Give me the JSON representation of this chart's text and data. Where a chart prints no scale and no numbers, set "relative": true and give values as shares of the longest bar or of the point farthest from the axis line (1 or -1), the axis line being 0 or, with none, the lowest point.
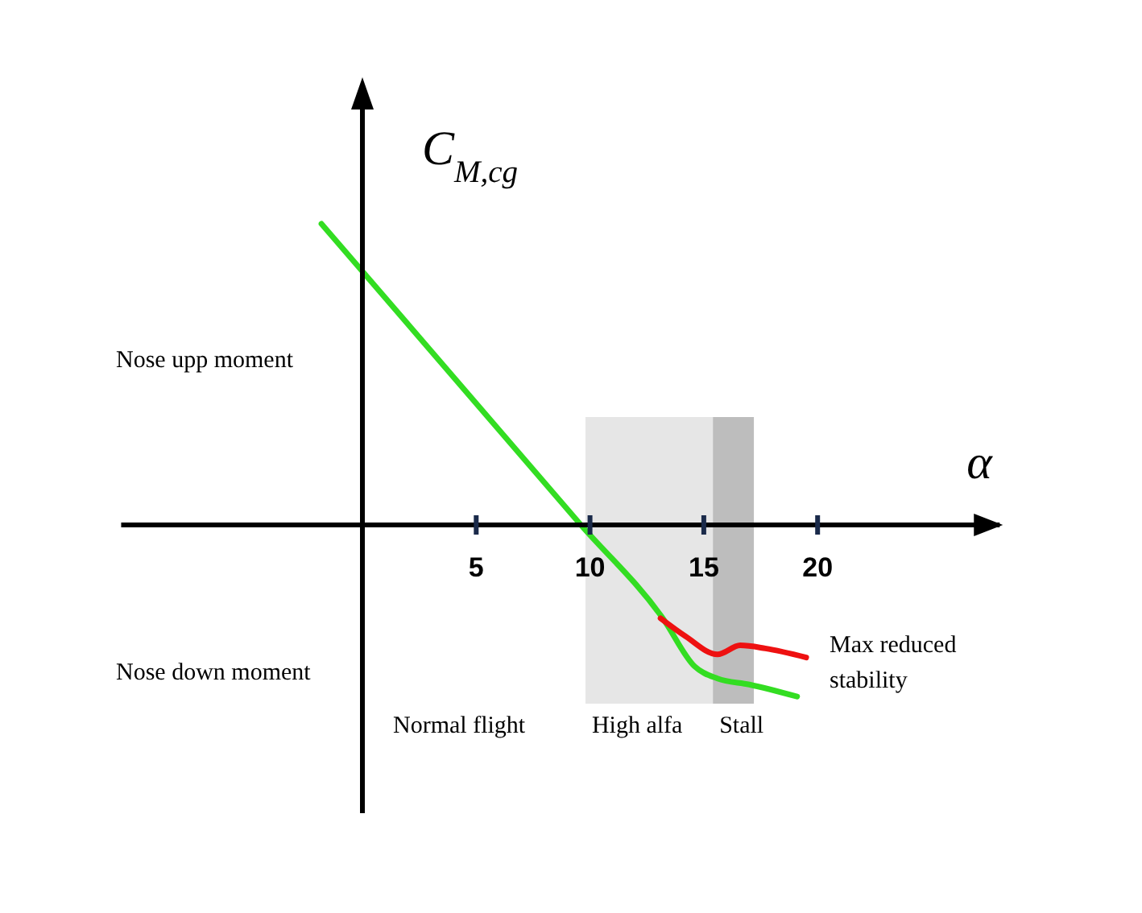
{
  "chart_data": {
    "type": "line",
    "relative": true,
    "xlabel": "α",
    "ylabel": "C$_{M,cg}$",
    "xlim": [
      -10.6,
      28
    ],
    "xticks": [
      5,
      10,
      15,
      20
    ],
    "marker": "none",
    "line_style": "solid",
    "series": [
      {
        "color": "#33dd22",
        "x": [
          -1.8,
          9.6,
          13.2,
          14.6,
          15.6,
          17,
          19.1
        ],
        "values": [
          1,
          0,
          -0.31,
          -0.47,
          -0.51,
          -0.53,
          -0.57
        ]
      },
      {
        "color": "#ee1111",
        "x": [
          13.1,
          14.2,
          15.6,
          16.6,
          17.7,
          19.5
        ],
        "values": [
          -0.31,
          -0.37,
          -0.43,
          -0.4,
          -0.41,
          -0.44
        ]
      }
    ],
    "bands": [
      {
        "axis": "x",
        "from": 9.8,
        "to": 15.4,
        "label": "High alfa",
        "color": "#e6e6e6"
      },
      {
        "axis": "x",
        "from": 15.4,
        "to": 17.2,
        "label": "Stall",
        "color": "#bdbdbd"
      }
    ],
    "annotations": [
      "Nose upp moment",
      "Nose down moment",
      "Normal flight",
      "Max reduced stability"
    ]
  }
}
